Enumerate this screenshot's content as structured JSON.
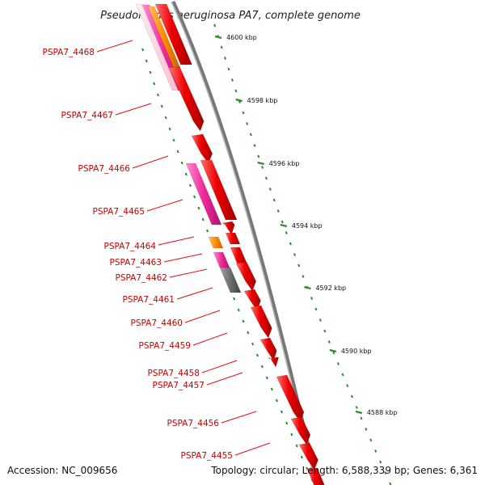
{
  "title": "Pseudomonas aeruginosa PA7, complete genome",
  "footer": {
    "accession": "Accession: NC_009656",
    "summary": "Topology: circular; Length: 6,588,339 bp; Genes: 6,361"
  },
  "colors": {
    "forward": "#ee0000",
    "reverse_pink": "#ee2a99",
    "orange": "#ff8c00",
    "gray": "#6e6e6e",
    "light_pink": "#ffc8d8",
    "label": "#cc0000",
    "tick": "#2e8b2e",
    "backbone": "#888888"
  },
  "ticks": [
    "4600 kbp",
    "4598 kbp",
    "4596 kbp",
    "4594 kbp",
    "4592 kbp",
    "4590 kbp",
    "4588 kbp"
  ],
  "genes": [
    {
      "label": "PSPA7_4468"
    },
    {
      "label": "PSPA7_4467"
    },
    {
      "label": "PSPA7_4466"
    },
    {
      "label": "PSPA7_4465"
    },
    {
      "label": "PSPA7_4464"
    },
    {
      "label": "PSPA7_4463"
    },
    {
      "label": "PSPA7_4462"
    },
    {
      "label": "PSPA7_4461"
    },
    {
      "label": "PSPA7_4460"
    },
    {
      "label": "PSPA7_4459"
    },
    {
      "label": "PSPA7_4458"
    },
    {
      "label": "PSPA7_4457"
    },
    {
      "label": "PSPA7_4456"
    },
    {
      "label": "PSPA7_4455"
    }
  ]
}
